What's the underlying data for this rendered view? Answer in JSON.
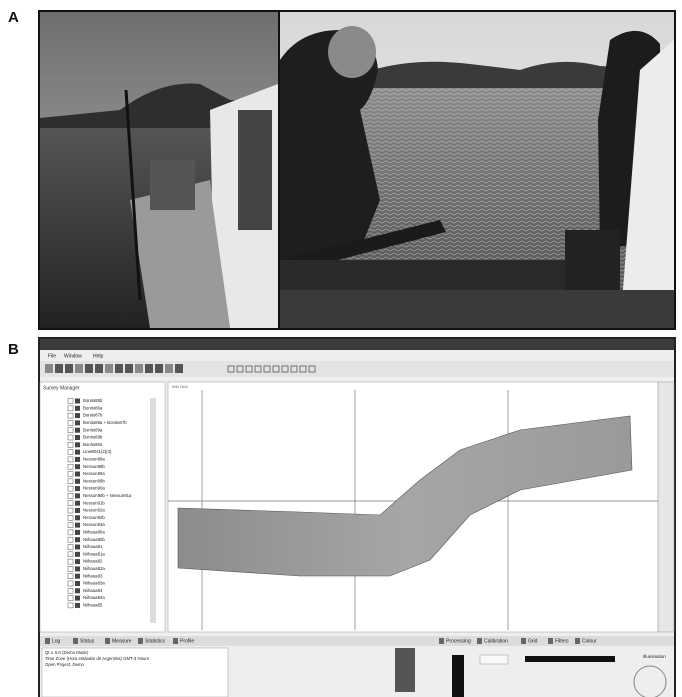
{
  "panels": [
    {
      "label": "A"
    },
    {
      "label": "B",
      "app": {
        "menu": [
          "File",
          "Window",
          "Help"
        ],
        "sidebar_title": "Survey Manager",
        "view_title": "Win Grid",
        "survey_items": [
          "Bonito85b",
          "Bonito86a",
          "Bonito87b",
          "Bonito88a + Bonito87b",
          "Bonito89a",
          "Bonito89b",
          "Bonito90a",
          "LineB0s1(2)(3)",
          "Nessun88a",
          "Nessun88b",
          "Nessun89a",
          "Nessun89b",
          "Nessun90a",
          "Nessun90b + Nessun91a",
          "Nessun91b",
          "Nessun92a",
          "Nessun92b",
          "Nessun93a",
          "Niihaua80a",
          "Niihaua80b",
          "Niihaua81",
          "Niihaua81a",
          "Niihaua82",
          "Niihaua82a",
          "Niihaua83",
          "Niihaua83a",
          "Niihaua84",
          "Niihaua84a",
          "Niihaua85"
        ],
        "bottom_tabs": [
          "Log",
          "Status",
          "Measure",
          "Statistics",
          "Profile"
        ],
        "tool_tabs": [
          "Processing",
          "Calibration",
          "Grid",
          "Filters",
          "Colour"
        ],
        "log_lines": [
          "Qt v. 5.0 (Demo Mode)",
          "Time Zone (Hora estándar de Argentina) GMT-3 Hours",
          "Open Project: Demo"
        ],
        "illumination": "Illumination"
      }
    }
  ]
}
